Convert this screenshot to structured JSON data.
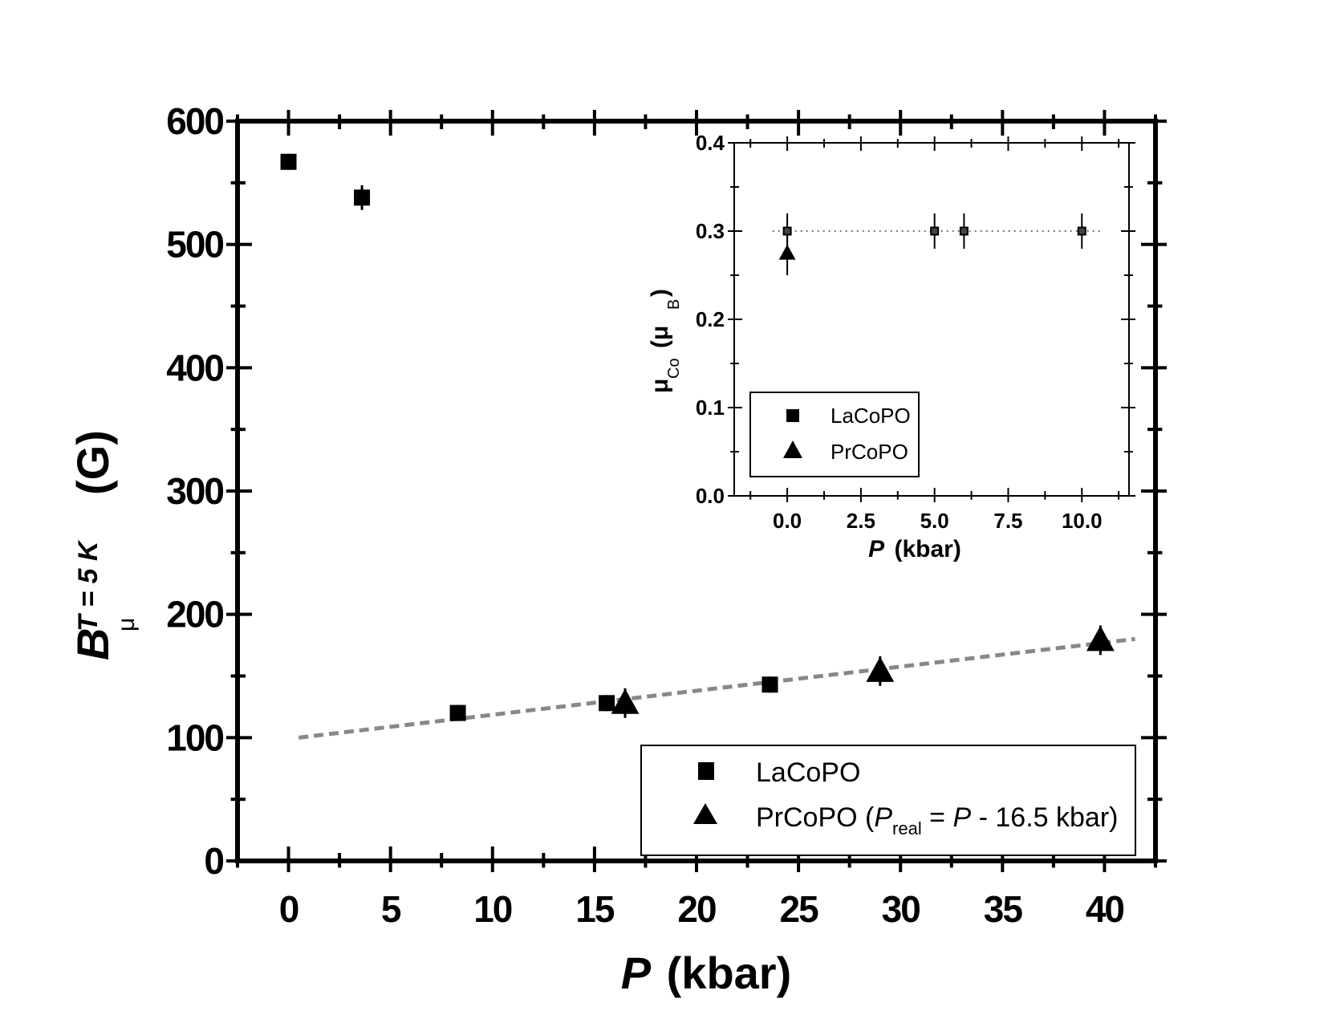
{
  "chart_data": [
    {
      "type": "scatter",
      "xlabel": {
        "var": "P",
        "unit": "(kbar)"
      },
      "ylabel": {
        "var": "B",
        "sub": "μ",
        "sup": "T = 5 K",
        "unit": "(G)"
      },
      "xlim": [
        -2.5,
        42.5
      ],
      "ylim": [
        0,
        600
      ],
      "xticks": [
        0,
        5,
        10,
        15,
        20,
        25,
        30,
        35,
        40
      ],
      "yticks": [
        0,
        100,
        200,
        300,
        400,
        500,
        600
      ],
      "series": [
        {
          "name": "LaCoPO",
          "marker": "square",
          "points": [
            {
              "x": 0,
              "y": 567,
              "err": 6
            },
            {
              "x": 3.6,
              "y": 538,
              "err": 10
            },
            {
              "x": 8.3,
              "y": 120,
              "err": 6
            },
            {
              "x": 15.6,
              "y": 128,
              "err": 6
            },
            {
              "x": 23.6,
              "y": 143,
              "err": 6
            }
          ]
        },
        {
          "name": "PrCoPO",
          "marker": "triangle",
          "points": [
            {
              "x": 16.5,
              "y": 128,
              "err": 12
            },
            {
              "x": 29,
              "y": 154,
              "err": 12
            },
            {
              "x": 39.8,
              "y": 179,
              "err": 12
            }
          ]
        }
      ],
      "fit_line": {
        "x": [
          0.5,
          41.5
        ],
        "y": [
          100,
          180
        ],
        "color": "#888888",
        "style": "dashed"
      },
      "legend": {
        "position": "bottom-right",
        "entries": [
          {
            "marker": "square",
            "label": "LaCoPO"
          },
          {
            "marker": "triangle",
            "label_prefix": "PrCoPO (",
            "label_var": "P",
            "label_sub": "real",
            "label_mid": " = ",
            "label_var2": "P",
            "label_suffix": " - 16.5 kbar)"
          }
        ]
      }
    },
    {
      "type": "scatter",
      "inset": true,
      "xlabel": {
        "var": "P",
        "unit": "(kbar)"
      },
      "ylabel": {
        "var": "μ",
        "sub": "Co",
        "unit_open": "(μ",
        "unit_sub": "B",
        "unit_close": ")"
      },
      "xlim": [
        -1.8,
        11.6
      ],
      "ylim": [
        0,
        0.4
      ],
      "xticks": [
        "0.0",
        "2.5",
        "5.0",
        "7.5",
        "10.0"
      ],
      "yticks": [
        "0.0",
        "0.1",
        "0.2",
        "0.3",
        "0.4"
      ],
      "series": [
        {
          "name": "LaCoPO",
          "marker": "square",
          "points": [
            {
              "x": 0,
              "y": 0.3,
              "err": 0.02
            },
            {
              "x": 5,
              "y": 0.3,
              "err": 0.02
            },
            {
              "x": 6,
              "y": 0.3,
              "err": 0.02
            },
            {
              "x": 10,
              "y": 0.3,
              "err": 0.02
            }
          ]
        },
        {
          "name": "PrCoPO",
          "marker": "triangle",
          "points": [
            {
              "x": 0,
              "y": 0.275,
              "err": 0.025
            }
          ]
        }
      ],
      "reference_line": {
        "y": 0.3,
        "x": [
          -0.5,
          10.7
        ],
        "style": "dotted",
        "color": "#777777"
      },
      "legend": {
        "position": "bottom-left",
        "entries": [
          {
            "marker": "square",
            "label": "LaCoPO"
          },
          {
            "marker": "triangle",
            "label": "PrCoPO"
          }
        ]
      }
    }
  ]
}
